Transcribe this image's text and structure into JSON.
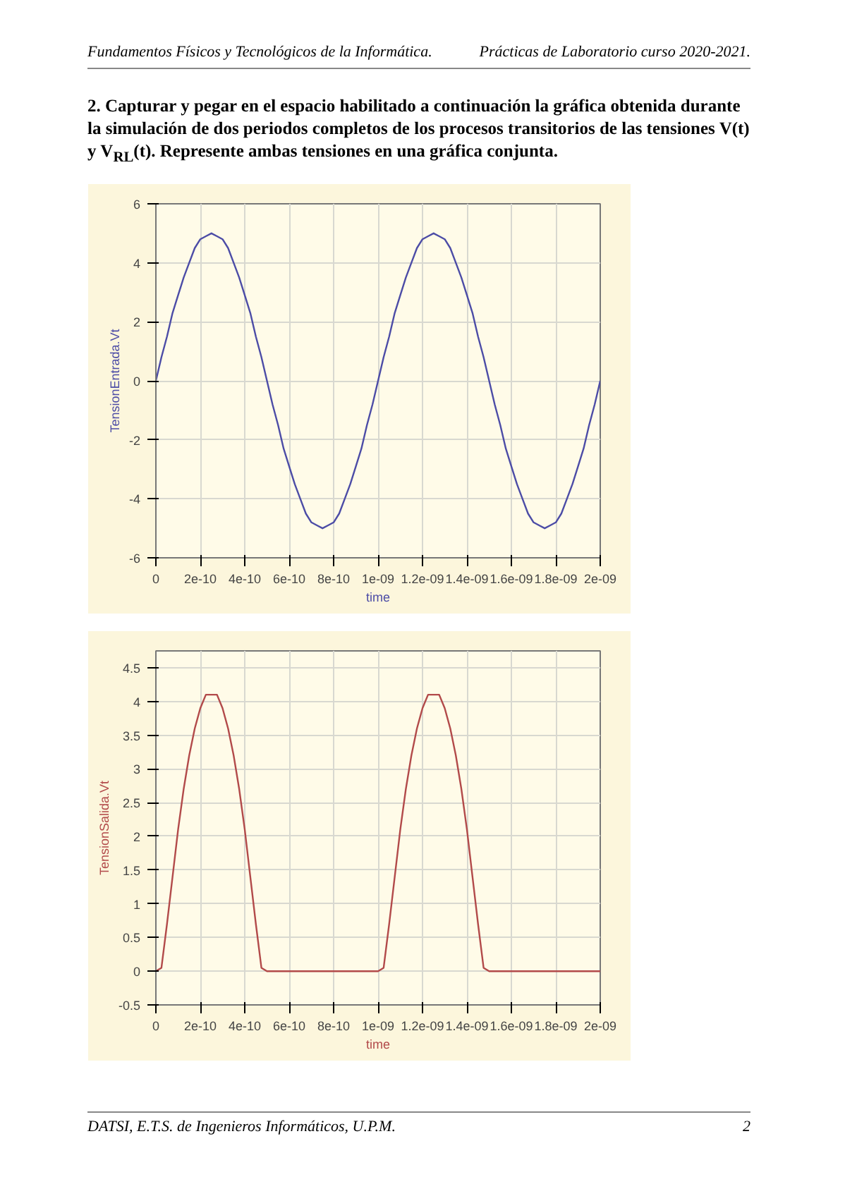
{
  "chart_data": [
    {
      "type": "line",
      "xlabel": "time",
      "ylabel": "TensionEntrada.Vt",
      "annotations": [
        "Fundamentos Físicos y Tecnológicos de la Informática.",
        "Prácticas de Laboratorio curso 2020-2021.",
        "2. Capturar y pegar en el espacio habilitado a continuación la gráfica obtenida durante la simulación de dos periodos completos de los procesos transitorios de las tensiones V(t) y V$_{RL}$(t). Represente ambas tensiones en una gráfica conjunta."
      ],
      "x": [
        0,
        2.5e-11,
        5e-11,
        7.5e-11,
        1e-10,
        1.25e-10,
        1.5e-10,
        1.75e-10,
        2e-10,
        2.25e-10,
        2.5e-10,
        2.75e-10,
        3e-10,
        3.25e-10,
        3.5e-10,
        3.75e-10,
        4e-10,
        4.25e-10,
        4.5e-10,
        4.75e-10,
        5e-10,
        5.25e-10,
        5.5e-10,
        5.75e-10,
        6e-10,
        6.25e-10,
        6.5e-10,
        6.75e-10,
        7e-10,
        7.25e-10,
        7.5e-10,
        7.75e-10,
        8e-10,
        8.25e-10,
        8.5e-10,
        8.75e-10,
        9e-10,
        9.25e-10,
        9.5e-10,
        9.75e-10,
        1e-09,
        1.025e-09,
        1.05e-09,
        1.075e-09,
        1.1e-09,
        1.125e-09,
        1.15e-09,
        1.175e-09,
        1.2e-09,
        1.225e-09,
        1.25e-09,
        1.275e-09,
        1.3e-09,
        1.325e-09,
        1.35e-09,
        1.375e-09,
        1.4e-09,
        1.425e-09,
        1.45e-09,
        1.475e-09,
        1.5e-09,
        1.525e-09,
        1.55e-09,
        1.575e-09,
        1.6e-09,
        1.625e-09,
        1.65e-09,
        1.675e-09,
        1.7e-09,
        1.725e-09,
        1.75e-09,
        1.775e-09,
        1.8e-09,
        1.825e-09,
        1.85e-09,
        1.875e-09,
        1.9e-09,
        1.925e-09,
        1.95e-09,
        1.975e-09,
        2e-09
      ],
      "series": [
        {
          "color": "#4c4ca6",
          "values": [
            0,
            0.8,
            1.5,
            2.3,
            2.9,
            3.5,
            4,
            4.5,
            4.8,
            4.9,
            5,
            4.9,
            4.8,
            4.5,
            4,
            3.5,
            2.9,
            2.3,
            1.5,
            0.8,
            0,
            -0.8,
            -1.5,
            -2.3,
            -2.9,
            -3.5,
            -4,
            -4.5,
            -4.8,
            -4.9,
            -5,
            -4.9,
            -4.8,
            -4.5,
            -4,
            -3.5,
            -2.9,
            -2.3,
            -1.5,
            -0.8,
            0,
            0.8,
            1.5,
            2.3,
            2.9,
            3.5,
            4,
            4.5,
            4.8,
            4.9,
            5,
            4.9,
            4.8,
            4.5,
            4,
            3.5,
            2.9,
            2.3,
            1.5,
            0.8,
            0,
            -0.8,
            -1.5,
            -2.3,
            -2.9,
            -3.5,
            -4,
            -4.5,
            -4.8,
            -4.9,
            -5,
            -4.9,
            -4.8,
            -4.5,
            -4,
            -3.5,
            -2.9,
            -2.3,
            -1.5,
            -0.8,
            0
          ]
        }
      ],
      "xlim": [
        0,
        2e-09
      ],
      "ylim": [
        -6,
        6
      ],
      "xticks": [
        {
          "value": 0,
          "label": "0"
        },
        {
          "value": 2e-10,
          "label": "2e-10"
        },
        {
          "value": 4e-10,
          "label": "4e-10"
        },
        {
          "value": 6e-10,
          "label": "6e-10"
        },
        {
          "value": 8e-10,
          "label": "8e-10"
        },
        {
          "value": 1e-09,
          "label": "1e-09"
        },
        {
          "value": 1.2e-09,
          "label": "1.2e-09"
        },
        {
          "value": 1.4e-09,
          "label": "1.4e-09"
        },
        {
          "value": 1.6e-09,
          "label": "1.6e-09"
        },
        {
          "value": 1.8e-09,
          "label": "1.8e-09"
        },
        {
          "value": 2e-09,
          "label": "2e-09"
        }
      ],
      "yticks": [
        -6,
        -4,
        -2,
        0,
        2,
        4,
        6
      ],
      "grid": true,
      "line_style": "solid"
    },
    {
      "type": "line",
      "xlabel": "time",
      "ylabel": "TensionSalida.Vt",
      "annotations": [
        "DATSI, E.T.S. de Ingenieros Informáticos, U.P.M.",
        "2"
      ],
      "x": [
        0,
        2.5e-11,
        5e-11,
        7.5e-11,
        1e-10,
        1.25e-10,
        1.5e-10,
        1.75e-10,
        2e-10,
        2.25e-10,
        2.5e-10,
        2.75e-10,
        3e-10,
        3.25e-10,
        3.5e-10,
        3.75e-10,
        4e-10,
        4.25e-10,
        4.5e-10,
        4.75e-10,
        5e-10,
        5.25e-10,
        5.5e-10,
        5.75e-10,
        6e-10,
        6.25e-10,
        6.5e-10,
        6.75e-10,
        7e-10,
        7.25e-10,
        7.5e-10,
        7.75e-10,
        8e-10,
        8.25e-10,
        8.5e-10,
        8.75e-10,
        9e-10,
        9.25e-10,
        9.5e-10,
        9.75e-10,
        1e-09,
        1.025e-09,
        1.05e-09,
        1.075e-09,
        1.1e-09,
        1.125e-09,
        1.15e-09,
        1.175e-09,
        1.2e-09,
        1.225e-09,
        1.25e-09,
        1.275e-09,
        1.3e-09,
        1.325e-09,
        1.35e-09,
        1.375e-09,
        1.4e-09,
        1.425e-09,
        1.45e-09,
        1.475e-09,
        1.5e-09,
        1.525e-09,
        1.55e-09,
        1.575e-09,
        1.6e-09,
        1.625e-09,
        1.65e-09,
        1.675e-09,
        1.7e-09,
        1.725e-09,
        1.75e-09,
        1.775e-09,
        1.8e-09,
        1.825e-09,
        1.85e-09,
        1.875e-09,
        1.9e-09,
        1.925e-09,
        1.95e-09,
        1.975e-09,
        2e-09
      ],
      "series": [
        {
          "color": "#b24a4a",
          "values": [
            0,
            0.05,
            0.7,
            1.4,
            2.1,
            2.7,
            3.2,
            3.6,
            3.9,
            4.1,
            4.1,
            4.1,
            3.9,
            3.6,
            3.2,
            2.7,
            2.1,
            1.4,
            0.7,
            0.05,
            0,
            0,
            0,
            0,
            0,
            0,
            0,
            0,
            0,
            0,
            0,
            0,
            0,
            0,
            0,
            0,
            0,
            0,
            0,
            0,
            0,
            0.05,
            0.7,
            1.4,
            2.1,
            2.7,
            3.2,
            3.6,
            3.9,
            4.1,
            4.1,
            4.1,
            3.9,
            3.6,
            3.2,
            2.7,
            2.1,
            1.4,
            0.7,
            0.05,
            0,
            0,
            0,
            0,
            0,
            0,
            0,
            0,
            0,
            0,
            0,
            0,
            0,
            0,
            0,
            0,
            0,
            0,
            0,
            0,
            0
          ]
        }
      ],
      "xlim": [
        0,
        2e-09
      ],
      "ylim": [
        -0.5,
        4.75
      ],
      "xticks": [
        {
          "value": 0,
          "label": "0"
        },
        {
          "value": 2e-10,
          "label": "2e-10"
        },
        {
          "value": 4e-10,
          "label": "4e-10"
        },
        {
          "value": 6e-10,
          "label": "6e-10"
        },
        {
          "value": 8e-10,
          "label": "8e-10"
        },
        {
          "value": 1e-09,
          "label": "1e-09"
        },
        {
          "value": 1.2e-09,
          "label": "1.2e-09"
        },
        {
          "value": 1.4e-09,
          "label": "1.4e-09"
        },
        {
          "value": 1.6e-09,
          "label": "1.6e-09"
        },
        {
          "value": 1.8e-09,
          "label": "1.8e-09"
        },
        {
          "value": 2e-09,
          "label": "2e-09"
        }
      ],
      "yticks": [
        -0.5,
        0,
        0.5,
        1,
        1.5,
        2,
        2.5,
        3,
        3.5,
        4,
        4.5
      ],
      "grid": true,
      "line_style": "solid"
    }
  ]
}
